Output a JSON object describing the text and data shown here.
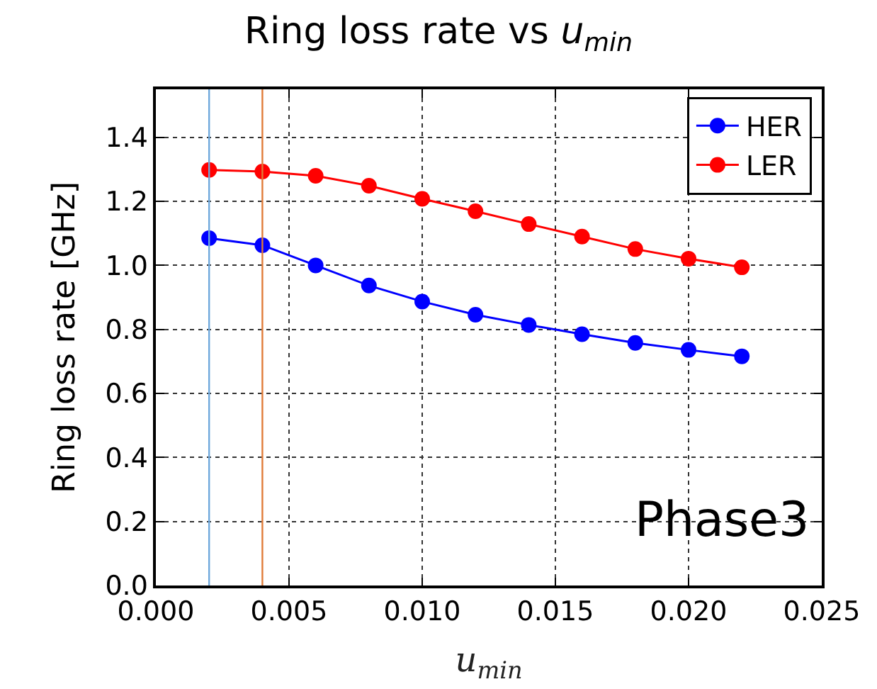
{
  "chart_data": {
    "type": "line",
    "title": "Ring loss rate vs u$_{min}$",
    "xlabel": "u$_{min}$",
    "ylabel": "Ring loss rate [GHz]",
    "x": [
      0.002,
      0.004,
      0.006,
      0.008,
      0.01,
      0.012,
      0.014,
      0.016,
      0.018,
      0.02,
      0.022
    ],
    "series": [
      {
        "name": "HER",
        "color": "#0000ff",
        "values": [
          1.085,
          1.063,
          1.0,
          0.937,
          0.887,
          0.846,
          0.814,
          0.785,
          0.758,
          0.736,
          0.716
        ]
      },
      {
        "name": "LER",
        "color": "#ff0000",
        "values": [
          1.298,
          1.293,
          1.28,
          1.249,
          1.208,
          1.169,
          1.129,
          1.09,
          1.051,
          1.021,
          0.994
        ]
      }
    ],
    "xlim": [
      0,
      0.025
    ],
    "xticks": [
      {
        "value": 0,
        "label": "0.000"
      },
      0.005,
      {
        "value": 0.01,
        "label": "0.010"
      },
      0.015,
      {
        "value": 0.02,
        "label": "0.020"
      },
      0.025
    ],
    "ylim": [
      0,
      1.55
    ],
    "yticks": [
      {
        "value": 0,
        "label": "0.0"
      },
      0.2,
      0.4,
      0.6,
      0.8,
      {
        "value": 1,
        "label": "1.0"
      },
      1.2,
      1.4
    ],
    "ref_lines": [
      {
        "axis": "x",
        "value": 0.002,
        "color": "#6fa8dc"
      },
      {
        "axis": "x",
        "value": 0.004,
        "color": "#e07b39"
      }
    ],
    "annotations": [
      "Phase3"
    ],
    "grid": true,
    "legend": "top right",
    "marker": "circle",
    "line_style": "solid"
  }
}
